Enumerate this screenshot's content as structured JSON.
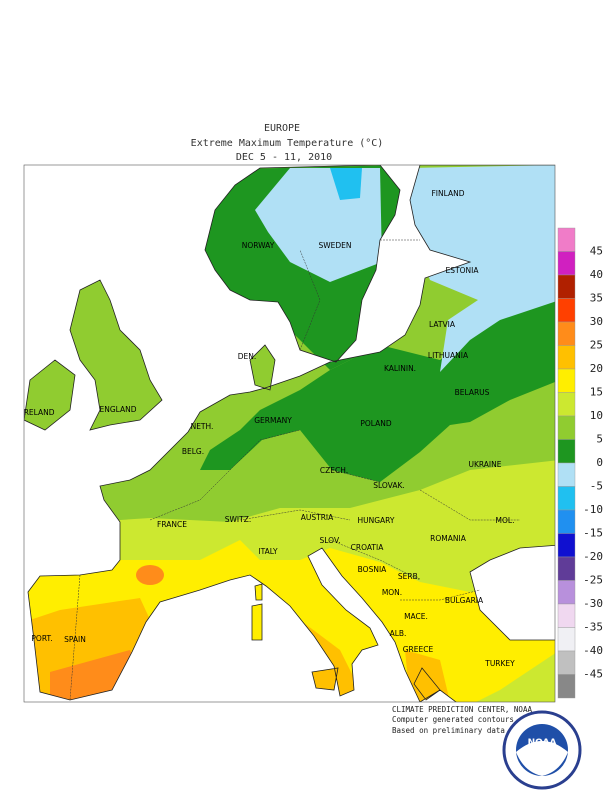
{
  "header": {
    "region": "EUROPE",
    "title": "Extreme Maximum Temperature (°C)",
    "dates": "DEC 5 - 11, 2010"
  },
  "labels": [
    "NORWAY",
    "SWEDEN",
    "FINLAND",
    "ESTONIA",
    "LATVIA",
    "LITHUANIA",
    "KALININ.",
    "DEN.",
    "BELARUS",
    "IRELAND",
    "ENGLAND",
    "NETH.",
    "GERMANY",
    "POLAND",
    "BELG.",
    "UKRAINE",
    "CZECH.",
    "SLOVAK.",
    "FRANCE",
    "SWITZ.",
    "AUSTRIA",
    "HUNGARY",
    "MOL.",
    "ROMANIA",
    "SLOV.",
    "CROATIA",
    "ITALY",
    "BOSNIA",
    "SERB.",
    "BULGARIA",
    "MON.",
    "PORT.",
    "SPAIN",
    "MACE.",
    "ALB.",
    "GREECE",
    "TURKEY"
  ],
  "legend": {
    "ticks": [
      45,
      40,
      35,
      30,
      25,
      20,
      15,
      10,
      5,
      0,
      -5,
      -10,
      -15,
      -20,
      -25,
      -30,
      -35,
      -40,
      -45
    ],
    "colors": [
      "#f07cc8",
      "#d020c0",
      "#b02000",
      "#ff4000",
      "#ff8c1a",
      "#ffc000",
      "#ffee00",
      "#cce830",
      "#90cc30",
      "#1e9620",
      "#b0e0f5",
      "#20c0f0",
      "#2090f0",
      "#1010d0",
      "#603c98",
      "#b890dc",
      "#f0d8f0",
      "#f0f0f4",
      "#c0c0c0",
      "#888888"
    ]
  },
  "footer": [
    "CLIMATE PREDICTION CENTER, NOAA",
    "Computer generated contours",
    "Based on preliminary data"
  ],
  "logo": "NOAA"
}
